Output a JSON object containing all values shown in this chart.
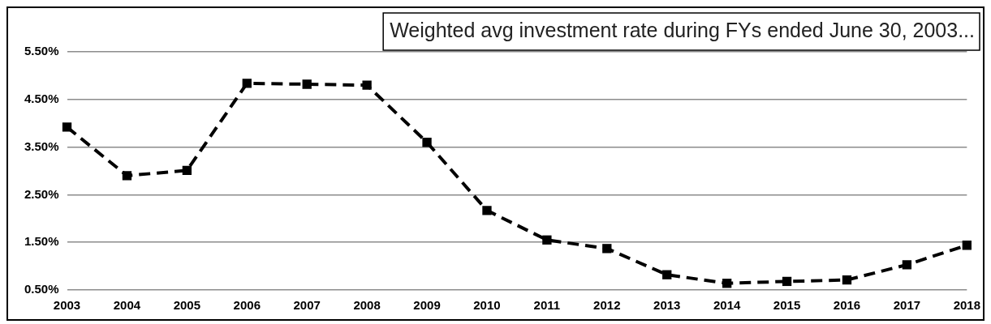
{
  "chart_data": {
    "type": "line",
    "title": "Weighted avg investment rate during FYs ended June 30, 2003...",
    "categories": [
      "2003",
      "2004",
      "2005",
      "2006",
      "2007",
      "2008",
      "2009",
      "2010",
      "2011",
      "2012",
      "2013",
      "2014",
      "2015",
      "2016",
      "2017",
      "2018"
    ],
    "series": [
      {
        "color": "#000000",
        "values": [
          3.92,
          2.9,
          3.01,
          4.84,
          4.82,
          4.8,
          3.6,
          2.17,
          1.55,
          1.37,
          0.82,
          0.64,
          0.68,
          0.71,
          1.03,
          1.44
        ]
      }
    ],
    "ylim": [
      0.5,
      5.5
    ],
    "yticks": [
      {
        "value": 0.5,
        "label": "0.50%"
      },
      {
        "value": 1.5,
        "label": "1.50%"
      },
      {
        "value": 2.5,
        "label": "2.50%"
      },
      {
        "value": 3.5,
        "label": "3.50%"
      },
      {
        "value": 4.5,
        "label": "4.50%"
      },
      {
        "value": 5.5,
        "label": "5.50%"
      }
    ],
    "grid": "y",
    "legend": false,
    "marker": "square",
    "line_style": "dashed"
  }
}
